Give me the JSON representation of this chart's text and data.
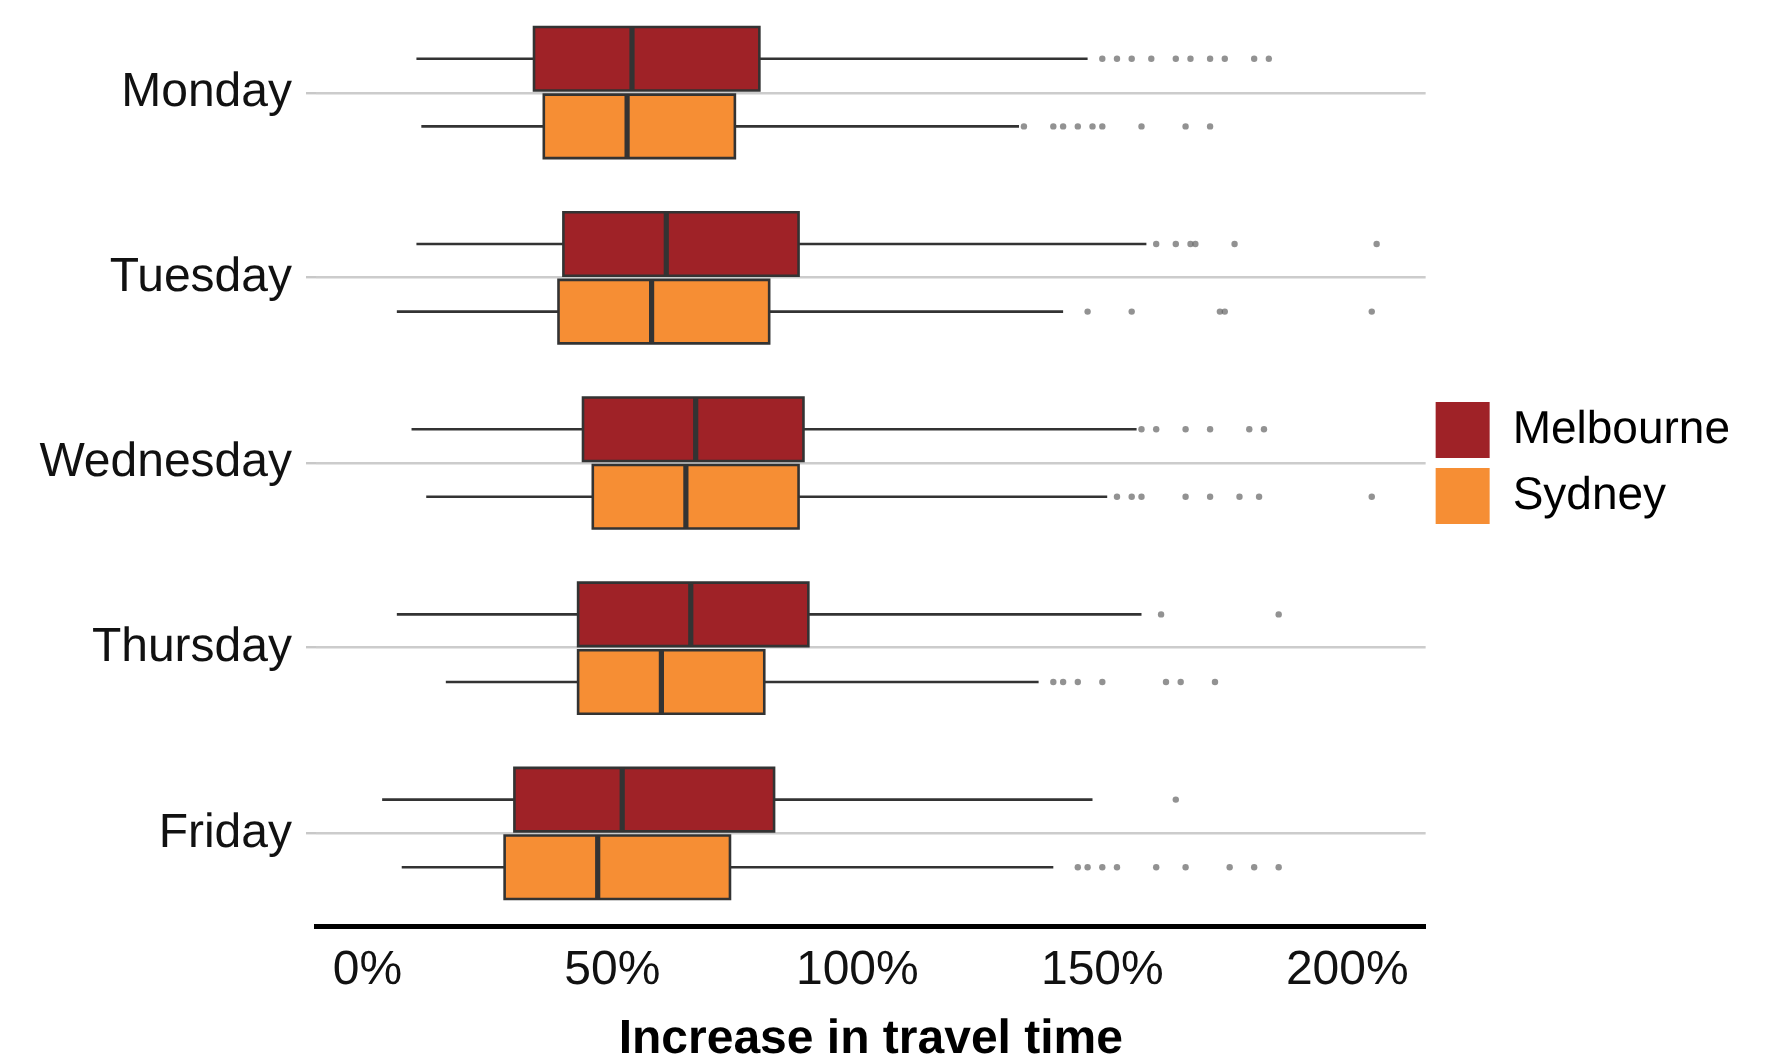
{
  "chart_data": {
    "type": "box",
    "orientation": "horizontal",
    "xlabel": "Increase in travel time",
    "categories": [
      "Monday",
      "Tuesday",
      "Wednesday",
      "Thursday",
      "Friday"
    ],
    "series": [
      {
        "name": "Melbourne",
        "color": "#9f2227",
        "boxes": [
          {
            "low": 10,
            "q1": 34,
            "median": 54,
            "q3": 80,
            "high": 147,
            "outliers": [
              150,
              153,
              156,
              160,
              165,
              168,
              172,
              175,
              181,
              184
            ]
          },
          {
            "low": 10,
            "q1": 40,
            "median": 61,
            "q3": 88,
            "high": 159,
            "outliers": [
              161,
              165,
              168,
              169,
              177,
              206
            ]
          },
          {
            "low": 9,
            "q1": 44,
            "median": 67,
            "q3": 89,
            "high": 157,
            "outliers": [
              158,
              161,
              167,
              172,
              180,
              183
            ]
          },
          {
            "low": 6,
            "q1": 43,
            "median": 66,
            "q3": 90,
            "high": 158,
            "outliers": [
              162,
              186
            ]
          },
          {
            "low": 3,
            "q1": 30,
            "median": 52,
            "q3": 83,
            "high": 148,
            "outliers": [
              165
            ]
          }
        ]
      },
      {
        "name": "Sydney",
        "color": "#f68e34",
        "boxes": [
          {
            "low": 11,
            "q1": 36,
            "median": 53,
            "q3": 75,
            "high": 133,
            "outliers": [
              134,
              140,
              142,
              145,
              148,
              150,
              158,
              167,
              172
            ]
          },
          {
            "low": 6,
            "q1": 39,
            "median": 58,
            "q3": 82,
            "high": 142,
            "outliers": [
              147,
              156,
              174,
              175,
              205
            ]
          },
          {
            "low": 12,
            "q1": 46,
            "median": 65,
            "q3": 88,
            "high": 151,
            "outliers": [
              153,
              156,
              158,
              167,
              172,
              178,
              182,
              205
            ]
          },
          {
            "low": 16,
            "q1": 43,
            "median": 60,
            "q3": 81,
            "high": 137,
            "outliers": [
              140,
              142,
              145,
              150,
              163,
              166,
              173
            ]
          },
          {
            "low": 7,
            "q1": 28,
            "median": 47,
            "q3": 74,
            "high": 140,
            "outliers": [
              145,
              147,
              150,
              153,
              161,
              167,
              176,
              181,
              186
            ]
          }
        ]
      }
    ],
    "xlim": [
      -10.5,
      216
    ],
    "xticks": [
      {
        "value": 0,
        "label": "0%"
      },
      {
        "value": 50,
        "label": "50%"
      },
      {
        "value": 100,
        "label": "100%"
      },
      {
        "value": 150,
        "label": "150%"
      },
      {
        "value": 200,
        "label": "200%"
      }
    ],
    "grid": "y",
    "legend": "right"
  }
}
